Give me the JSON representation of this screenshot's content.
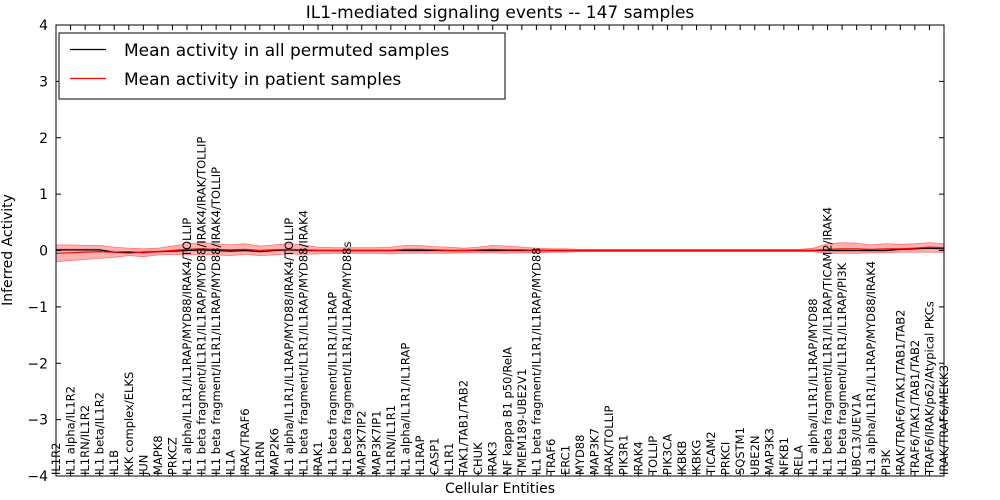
{
  "chart_data": {
    "type": "line",
    "title": "IL1-mediated signaling events -- 147 samples",
    "xlabel": "Cellular Entities",
    "ylabel": "Inferred Activity",
    "ylim": [
      -4,
      4
    ],
    "yticks": [
      -4,
      -3,
      -2,
      -1,
      0,
      1,
      2,
      3,
      4
    ],
    "ytick_labels": [
      "−4",
      "−3",
      "−2",
      "−1",
      "0",
      "1",
      "2",
      "3",
      "4"
    ],
    "legend": {
      "placement": "top-left",
      "entries": [
        {
          "label": "Mean activity in all permuted samples",
          "color": "#000000"
        },
        {
          "label": "Mean activity in patient samples",
          "color": "#ff0000"
        }
      ]
    },
    "categories": [
      "IL1R2",
      "IL1 alpha/IL1R2",
      "IL1RN/IL1R2",
      "IL1 beta/IL1R2",
      "IL1B",
      "IKK complex/ELKS",
      "JUN",
      "MAPK8",
      "PRKCZ",
      "IL1 alpha/IL1R1/IL1RAP/MYD88/IRAK4/TOLLIP",
      "IL1 beta fragment/IL1R1/IL1RAP/MYD88/IRAK4/IRAK/TOLLIP",
      "IL1 beta fragment/IL1R1/IL1RAP/MYD88/IRAK4/TOLLIP",
      "IL1A",
      "IRAK/TRAF6",
      "IL1RN",
      "MAP2K6",
      "IL1 alpha/IL1R1/IL1RAP/MYD88/IRAK4/TOLLIP",
      "IL1 beta fragment/IL1R1/IL1RAP/MYD88/IRAK4",
      "IRAK1",
      "IL1 beta fragment/IL1R1/IL1RAP",
      "IL1 beta fragment/IL1R1/IL1RAP/MYD88s",
      "MAP3K7IP2",
      "MAP3K7IP1",
      "IL1RN/IL1R1",
      "IL1 alpha/IL1R1/IL1RAP",
      "IL1RAP",
      "CASP1",
      "IL1R1",
      "TAK1/TAB1/TAB2",
      "CHUK",
      "IRAK3",
      "NF kappa B1 p50/RelA",
      "TMEM189-UBE2V1",
      "IL1 beta fragment/IL1R1/IL1RAP/MYD88",
      "TRAF6",
      "ERC1",
      "MYD88",
      "MAP3K7",
      "IRAK/TOLLIP",
      "PIK3R1",
      "IRAK4",
      "TOLLIP",
      "PIK3CA",
      "IKBKB",
      "IKBKG",
      "TICAM2",
      "PRKCI",
      "SQSTM1",
      "UBE2N",
      "MAP3K3",
      "NFKB1",
      "RELA",
      "IL1 alpha/IL1R1/IL1RAP/MYD88",
      "IL1 beta fragment/IL1R1/IL1RAP/TICAM2/IRAK4",
      "IL1 beta fragment/IL1R1/IL1RAP/PI3K",
      "UBC13/UEV1A",
      "IL1 alpha/IL1R1/IL1RAP/MYD88/IRAK4",
      "PI3K",
      "IRAK/TRAF6/TAK1/TAB1/TAB2",
      "TRAF6/TAK1/TAB1/TAB2",
      "TRAF6/IRAK/p62/Atypical PKCs",
      "IRAK/TRAF6/MEKK3"
    ],
    "series": [
      {
        "name": "Mean activity in all permuted samples",
        "color": "#000000",
        "values": [
          0.01,
          0.01,
          0.01,
          0.01,
          -0.03,
          -0.04,
          -0.03,
          -0.02,
          -0.01,
          0.0,
          0.01,
          0.0,
          -0.01,
          0.0,
          -0.02,
          0.0,
          0.01,
          0.0,
          0.0,
          0.0,
          0.0,
          0.0,
          0.0,
          0.0,
          0.0,
          0.0,
          0.0,
          0.0,
          0.0,
          0.0,
          0.0,
          0.0,
          0.0,
          0.0,
          0.0,
          0.0,
          0.0,
          0.0,
          0.0,
          0.0,
          0.0,
          0.0,
          0.0,
          0.0,
          0.0,
          0.0,
          0.0,
          0.0,
          0.0,
          0.0,
          0.0,
          0.0,
          0.0,
          0.0,
          0.0,
          0.0,
          0.0,
          0.0,
          0.02,
          0.03,
          0.04,
          0.03
        ]
      },
      {
        "name": "Mean activity in patient samples",
        "color": "#ff0000",
        "values": [
          -0.05,
          -0.04,
          -0.03,
          -0.02,
          -0.03,
          -0.02,
          -0.04,
          -0.02,
          0.0,
          0.02,
          0.03,
          0.02,
          0.01,
          0.02,
          0.0,
          0.01,
          0.02,
          0.01,
          0.0,
          0.0,
          0.0,
          0.0,
          0.0,
          0.0,
          0.02,
          0.02,
          0.01,
          0.0,
          0.0,
          0.01,
          0.02,
          0.01,
          0.01,
          0.0,
          0.0,
          0.0,
          0.0,
          0.0,
          0.0,
          0.0,
          0.0,
          0.0,
          0.0,
          0.0,
          0.0,
          0.0,
          0.0,
          0.0,
          0.0,
          0.0,
          0.0,
          0.0,
          0.0,
          0.02,
          0.03,
          0.03,
          0.02,
          0.03,
          0.03,
          0.04,
          0.06,
          0.05
        ],
        "upper": [
          0.1,
          0.1,
          0.09,
          0.09,
          0.06,
          0.04,
          0.03,
          0.04,
          0.08,
          0.12,
          0.14,
          0.12,
          0.1,
          0.12,
          0.08,
          0.1,
          0.12,
          0.1,
          0.06,
          0.05,
          0.05,
          0.05,
          0.05,
          0.06,
          0.09,
          0.09,
          0.07,
          0.06,
          0.04,
          0.06,
          0.09,
          0.08,
          0.06,
          0.04,
          0.03,
          0.03,
          0.02,
          0.02,
          0.02,
          0.02,
          0.02,
          0.02,
          0.02,
          0.02,
          0.02,
          0.02,
          0.02,
          0.02,
          0.02,
          0.02,
          0.02,
          0.02,
          0.04,
          0.12,
          0.14,
          0.13,
          0.1,
          0.12,
          0.11,
          0.12,
          0.14,
          0.12
        ],
        "lower": [
          -0.2,
          -0.18,
          -0.16,
          -0.14,
          -0.12,
          -0.09,
          -0.11,
          -0.08,
          -0.07,
          -0.08,
          -0.07,
          -0.08,
          -0.09,
          -0.07,
          -0.09,
          -0.08,
          -0.06,
          -0.07,
          -0.06,
          -0.05,
          -0.05,
          -0.05,
          -0.05,
          -0.06,
          -0.05,
          -0.05,
          -0.05,
          -0.05,
          -0.04,
          -0.04,
          -0.04,
          -0.05,
          -0.04,
          -0.04,
          -0.03,
          -0.03,
          -0.02,
          -0.02,
          -0.02,
          -0.02,
          -0.02,
          -0.02,
          -0.02,
          -0.02,
          -0.02,
          -0.02,
          -0.02,
          -0.02,
          -0.02,
          -0.02,
          -0.02,
          -0.02,
          -0.02,
          -0.05,
          -0.05,
          -0.05,
          -0.04,
          -0.04,
          -0.03,
          -0.03,
          -0.03,
          -0.03
        ]
      }
    ]
  }
}
